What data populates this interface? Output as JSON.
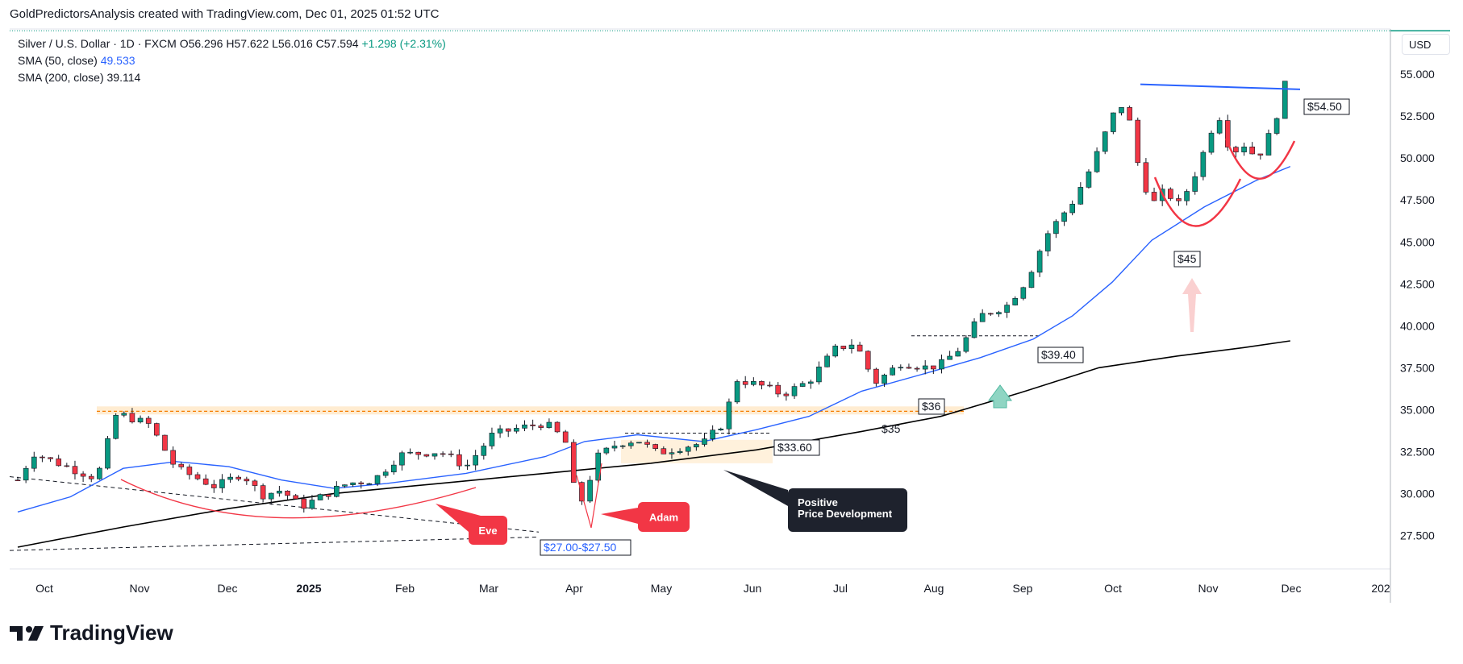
{
  "header": {
    "caption": "GoldPredictorsAnalysis created with TradingView.com, Dec 01, 2025 01:52 UTC"
  },
  "legend": {
    "symbol": "Silver / U.S. Dollar · 1D · FXCM",
    "open": "O56.296",
    "high": "H57.622",
    "low": "L56.016",
    "close": "C57.594",
    "change": "+1.298 (+2.31%)",
    "sma50_label": "SMA (50, close)",
    "sma50_value": "49.533",
    "sma200_label": "SMA (200, close)",
    "sma200_value": "39.114"
  },
  "currency": "USD",
  "brand": "TradingView",
  "colors": {
    "up": "#089981",
    "down": "#f23645",
    "sma50": "#2962ff",
    "sma200": "#000000",
    "annotation_red": "#f23645",
    "level_blue": "#2962ff"
  },
  "chart_data": {
    "type": "candlestick",
    "instrument": "Silver / U.S. Dollar",
    "interval": "1D",
    "ylim": [
      25.5,
      57.7
    ],
    "y_ticks": [
      "27.500",
      "30.000",
      "32.500",
      "35.000",
      "37.500",
      "40.000",
      "42.500",
      "45.000",
      "47.500",
      "50.000",
      "52.500",
      "55.000"
    ],
    "x_ticks": [
      "Oct",
      "Nov",
      "Dec",
      "2025",
      "Feb",
      "Mar",
      "Apr",
      "May",
      "Jun",
      "Jul",
      "Aug",
      "Sep",
      "Oct",
      "Nov",
      "Dec",
      "202"
    ],
    "price_path": [
      [
        0,
        30.8
      ],
      [
        12,
        32.4
      ],
      [
        40,
        31.5
      ],
      [
        60,
        30.9
      ],
      [
        75,
        34.8
      ],
      [
        100,
        34.1
      ],
      [
        120,
        31.5
      ],
      [
        150,
        30.4
      ],
      [
        170,
        31.2
      ],
      [
        185,
        29.9
      ],
      [
        200,
        30.2
      ],
      [
        215,
        29.2
      ],
      [
        230,
        29.8
      ],
      [
        250,
        30.6
      ],
      [
        270,
        30.8
      ],
      [
        290,
        32.3
      ],
      [
        320,
        32.5
      ],
      [
        340,
        31.6
      ],
      [
        360,
        33.5
      ],
      [
        380,
        33.9
      ],
      [
        400,
        34.2
      ],
      [
        415,
        33.2
      ],
      [
        425,
        29.0
      ],
      [
        440,
        32.2
      ],
      [
        455,
        33.0
      ],
      [
        470,
        33.2
      ],
      [
        485,
        32.4
      ],
      [
        505,
        32.8
      ],
      [
        520,
        33.0
      ],
      [
        535,
        34.2
      ],
      [
        545,
        36.8
      ],
      [
        565,
        36.4
      ],
      [
        580,
        35.9
      ],
      [
        600,
        36.7
      ],
      [
        620,
        38.6
      ],
      [
        635,
        39.0
      ],
      [
        650,
        36.6
      ],
      [
        670,
        37.8
      ],
      [
        690,
        37.5
      ],
      [
        700,
        37.7
      ],
      [
        715,
        38.7
      ],
      [
        730,
        40.6
      ],
      [
        750,
        41.2
      ],
      [
        765,
        42.7
      ],
      [
        780,
        45.4
      ],
      [
        800,
        47.4
      ],
      [
        815,
        49.6
      ],
      [
        830,
        52.5
      ],
      [
        840,
        53.4
      ],
      [
        850,
        49.5
      ],
      [
        860,
        47.2
      ],
      [
        870,
        48.1
      ],
      [
        880,
        47.2
      ],
      [
        890,
        48.5
      ],
      [
        900,
        50.5
      ],
      [
        910,
        52.8
      ],
      [
        920,
        50.3
      ],
      [
        930,
        50.8
      ],
      [
        940,
        50.0
      ],
      [
        950,
        51.5
      ],
      [
        960,
        53.8
      ],
      [
        967,
        57.6
      ]
    ],
    "sma50_path": [
      [
        0,
        28.9
      ],
      [
        40,
        29.8
      ],
      [
        80,
        31.5
      ],
      [
        120,
        31.9
      ],
      [
        160,
        31.6
      ],
      [
        200,
        30.8
      ],
      [
        240,
        30.3
      ],
      [
        280,
        30.6
      ],
      [
        340,
        31.2
      ],
      [
        400,
        32.2
      ],
      [
        430,
        33.1
      ],
      [
        470,
        33.5
      ],
      [
        520,
        33.1
      ],
      [
        560,
        33.8
      ],
      [
        600,
        34.6
      ],
      [
        640,
        36.1
      ],
      [
        690,
        37.2
      ],
      [
        730,
        38.1
      ],
      [
        770,
        39.2
      ],
      [
        800,
        40.6
      ],
      [
        830,
        42.6
      ],
      [
        860,
        45.1
      ],
      [
        900,
        47.1
      ],
      [
        940,
        48.7
      ],
      [
        965,
        49.5
      ]
    ],
    "sma200_path": [
      [
        0,
        26.8
      ],
      [
        80,
        28.0
      ],
      [
        160,
        29.1
      ],
      [
        240,
        30.0
      ],
      [
        320,
        30.6
      ],
      [
        400,
        31.2
      ],
      [
        480,
        31.8
      ],
      [
        560,
        32.6
      ],
      [
        640,
        33.7
      ],
      [
        700,
        34.6
      ],
      [
        760,
        36.0
      ],
      [
        820,
        37.5
      ],
      [
        880,
        38.2
      ],
      [
        930,
        38.7
      ],
      [
        965,
        39.1
      ]
    ],
    "levels": [
      {
        "label": "$54.50",
        "value": 54.5
      },
      {
        "label": "$39.40",
        "value": 39.4
      },
      {
        "label": "$36",
        "value": 36.0
      },
      {
        "label": "$35",
        "value": 35.0
      },
      {
        "label": "$33.60",
        "value": 33.6
      },
      {
        "label": "$27.00-$27.50",
        "value": 27.25
      },
      {
        "label": "$45",
        "value": 45.0
      }
    ],
    "annotations": [
      "Eve",
      "Adam",
      "Positive\nPrice Development"
    ]
  }
}
